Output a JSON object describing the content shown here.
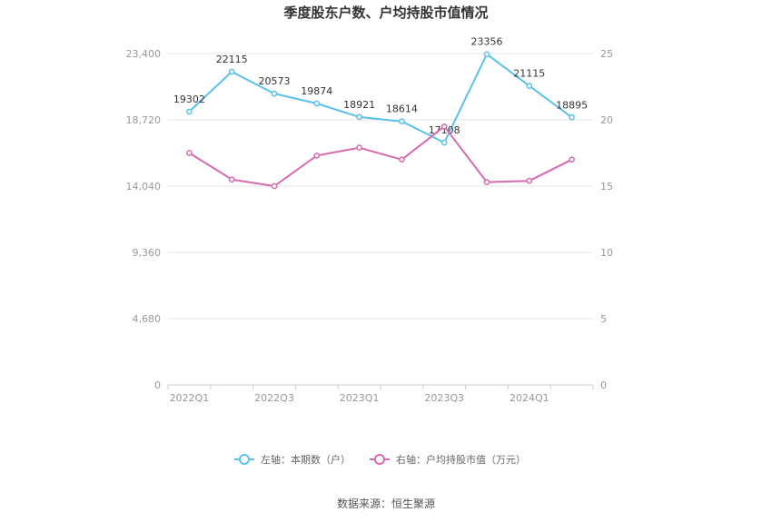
{
  "chart_data": {
    "type": "line",
    "title": "季度股东户数、户均持股市值情况",
    "x": [
      "2022Q1",
      "2022Q2",
      "2022Q3",
      "2022Q4",
      "2023Q1",
      "2023Q2",
      "2023Q3",
      "2023Q4",
      "2024Q1",
      "2024Q2"
    ],
    "x_tick_labels": [
      "2022Q1",
      "2022Q3",
      "2023Q1",
      "2023Q3",
      "2024Q1"
    ],
    "y_left": {
      "ylim": [
        0,
        23400
      ],
      "ticks": [
        "0",
        "4,680",
        "9,360",
        "14,040",
        "18,720",
        "23,400"
      ]
    },
    "y_right": {
      "ylim": [
        0,
        25
      ],
      "ticks": [
        "0",
        "5",
        "10",
        "15",
        "20",
        "25"
      ]
    },
    "grid": true,
    "legend_position": "bottom",
    "series": [
      {
        "name": "左轴：本期数（户）",
        "axis": "left",
        "color": "#5bc0eb",
        "values": [
          19302,
          22115,
          20573,
          19874,
          18921,
          18614,
          17108,
          23356,
          21115,
          18895
        ],
        "labels": [
          "19302",
          "22115",
          "20573",
          "19874",
          "18921",
          "18614",
          "17108",
          "23356",
          "21115",
          "18895"
        ]
      },
      {
        "name": "右轴：户均持股市值（万元）",
        "axis": "right",
        "color": "#d86ab0",
        "values": [
          17.5,
          15.5,
          15.0,
          17.3,
          17.9,
          17.0,
          19.5,
          15.3,
          15.4,
          17.0
        ]
      }
    ]
  },
  "footer": {
    "source": "数据来源：恒生聚源"
  }
}
